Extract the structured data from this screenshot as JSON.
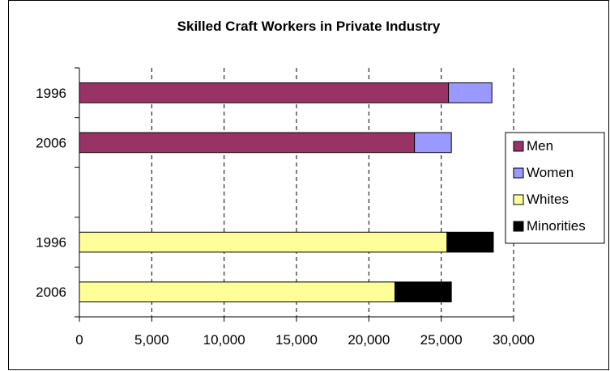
{
  "chart_data": {
    "type": "bar",
    "orientation": "horizontal",
    "stacked": true,
    "title": "Skilled Craft Workers in Private Industry",
    "xlabel": "",
    "ylabel": "",
    "xlim": [
      0,
      30000
    ],
    "x_ticks": [
      "0",
      "5,000",
      "10,000",
      "15,000",
      "20,000",
      "25,000",
      "30,000"
    ],
    "grid": "vertical dashed",
    "legend_position": "right",
    "groups": [
      {
        "rows": [
          {
            "label": "1996",
            "segments": [
              {
                "series": "Men",
                "value": 25500
              },
              {
                "series": "Women",
                "value": 3000
              }
            ]
          },
          {
            "label": "2006",
            "segments": [
              {
                "series": "Men",
                "value": 23150
              },
              {
                "series": "Women",
                "value": 2550
              }
            ]
          }
        ]
      },
      {
        "rows": [
          {
            "label": "1996",
            "segments": [
              {
                "series": "Whites",
                "value": 25400
              },
              {
                "series": "Minorities",
                "value": 3200
              }
            ]
          },
          {
            "label": "2006",
            "segments": [
              {
                "series": "Whites",
                "value": 21800
              },
              {
                "series": "Minorities",
                "value": 3900
              }
            ]
          }
        ]
      }
    ],
    "legend": [
      {
        "name": "Men",
        "color": "#993366"
      },
      {
        "name": "Women",
        "color": "#9999ff"
      },
      {
        "name": "Whites",
        "color": "#ffff99"
      },
      {
        "name": "Minorities",
        "color": "#000000"
      }
    ]
  }
}
